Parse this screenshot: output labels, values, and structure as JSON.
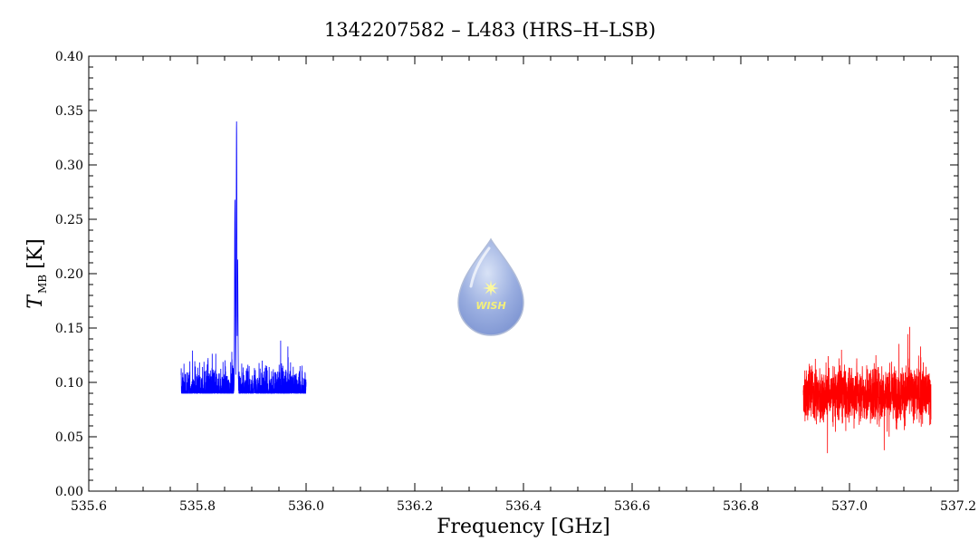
{
  "chart_data": {
    "type": "line",
    "title": "1342207582 – L483 (HRS–H–LSB)",
    "xlabel": "Frequency [GHz]",
    "ylabel": {
      "symbol": "T",
      "subscript": "MB",
      "unit": "[K]"
    },
    "xlim": [
      535.6,
      537.2
    ],
    "ylim": [
      0.0,
      0.4
    ],
    "xticks": [
      "535.6",
      "535.8",
      "536.0",
      "536.2",
      "536.4",
      "536.6",
      "536.8",
      "537.0",
      "537.2"
    ],
    "yticks": [
      "0.00",
      "0.05",
      "0.10",
      "0.15",
      "0.20",
      "0.25",
      "0.30",
      "0.35",
      "0.40"
    ],
    "grid": false,
    "series": [
      {
        "color": "#0000ff",
        "x_range": [
          535.77,
          536.0
        ],
        "baseline": 0.09,
        "noise_rms": 0.018,
        "noise_min": 0.015,
        "noise_max": 0.175,
        "peaks": [
          {
            "x": 535.872,
            "y": 0.34
          },
          {
            "x": 535.869,
            "y": 0.268
          },
          {
            "x": 535.874,
            "y": 0.213
          }
        ]
      },
      {
        "color": "#ff0000",
        "x_range": [
          536.915,
          537.15
        ],
        "baseline": 0.09,
        "noise_rms": 0.018,
        "noise_min": 0.015,
        "noise_max": 0.172,
        "peaks": []
      }
    ]
  },
  "logo": {
    "text": "WISH",
    "x": 536.34,
    "y": 0.18
  }
}
